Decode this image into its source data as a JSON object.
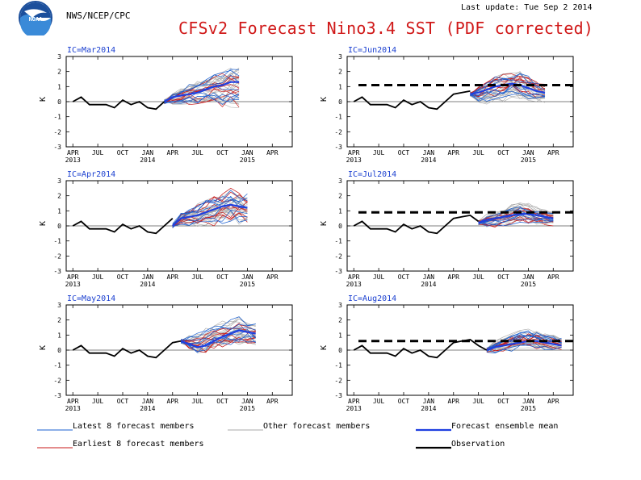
{
  "header": {
    "agency": "NWS/NCEP/CPC",
    "last_update": "Last update: Tue Sep  2 2014",
    "title": "CFSv2 Forecast Nino3.4 SST (PDF corrected)",
    "logo_text": "NOAA"
  },
  "colors": {
    "latest_members": "#1a5fd0",
    "other_members": "#a8a8a8",
    "earliest_members": "#c81818",
    "ensemble_mean": "#1f3fe0",
    "observation": "#000000",
    "panel_title": "#1a3fd0",
    "title": "#d01818"
  },
  "legend": [
    {
      "label": "Latest 8 forecast members",
      "color": "#1a5fd0",
      "style": "thin"
    },
    {
      "label": "Other forecast members",
      "color": "#a8a8a8",
      "style": "thin"
    },
    {
      "label": "Forecast ensemble mean",
      "color": "#1f3fe0",
      "style": "thick"
    },
    {
      "label": "Earliest 8 forecast members",
      "color": "#c81818",
      "style": "thin"
    },
    {
      "label": "Observation",
      "color": "#000000",
      "style": "thick"
    }
  ],
  "chart_data": [
    {
      "type": "line",
      "ic": "IC=Mar2014",
      "ic_month": 11,
      "ylabel": "K",
      "ylim": [
        -3,
        3
      ],
      "yticks": [
        -3,
        -2,
        -1,
        0,
        1,
        2,
        3
      ],
      "reference_line": null,
      "x_tick_labels": [
        [
          "APR",
          "2013"
        ],
        [
          "JUL",
          ""
        ],
        [
          "OCT",
          ""
        ],
        [
          "JAN",
          "2014"
        ],
        [
          "APR",
          ""
        ],
        [
          "JUL",
          ""
        ],
        [
          "OCT",
          ""
        ],
        [
          "JAN",
          "2015"
        ],
        [
          "APR",
          ""
        ]
      ],
      "observation": [
        0.0,
        0.3,
        -0.2,
        -0.2,
        -0.2,
        -0.4,
        0.1,
        -0.2,
        0.0,
        -0.4,
        -0.5,
        0.0
      ],
      "ensemble_mean": [
        0.0,
        0.3,
        0.4,
        0.5,
        0.6,
        0.8,
        1.0,
        1.1,
        1.3,
        1.3
      ],
      "spread_low": [
        0.0,
        -0.2,
        -0.2,
        -0.2,
        -0.3,
        -0.3,
        -0.3,
        -0.4,
        -0.5,
        -0.4
      ],
      "spread_high": [
        0.0,
        0.6,
        0.9,
        1.2,
        1.4,
        1.6,
        1.8,
        2.0,
        2.3,
        2.4
      ]
    },
    {
      "type": "line",
      "ic": "IC=Jun2014",
      "ic_month": 14,
      "ylabel": "K",
      "ylim": [
        -3,
        3
      ],
      "yticks": [
        -3,
        -2,
        -1,
        0,
        1,
        2,
        3
      ],
      "reference_line": 1.1,
      "x_tick_labels": [
        [
          "APR",
          "2013"
        ],
        [
          "JUL",
          ""
        ],
        [
          "OCT",
          ""
        ],
        [
          "JAN",
          "2014"
        ],
        [
          "APR",
          ""
        ],
        [
          "JUL",
          ""
        ],
        [
          "OCT",
          ""
        ],
        [
          "JAN",
          "2015"
        ],
        [
          "APR",
          ""
        ]
      ],
      "observation": [
        0.0,
        0.3,
        -0.2,
        -0.2,
        -0.2,
        -0.4,
        0.1,
        -0.2,
        0.0,
        -0.4,
        -0.5,
        0.0,
        0.5,
        0.6,
        0.7
      ],
      "ensemble_mean": [
        0.5,
        0.6,
        0.8,
        1.0,
        1.1,
        1.2,
        1.1,
        0.9,
        0.7,
        0.6
      ],
      "spread_low": [
        0.3,
        -0.2,
        -0.2,
        -0.1,
        0.0,
        0.1,
        0.1,
        0.0,
        -0.1,
        -0.1
      ],
      "spread_high": [
        0.7,
        1.0,
        1.4,
        1.7,
        1.9,
        2.0,
        2.0,
        1.7,
        1.4,
        1.2
      ]
    },
    {
      "type": "line",
      "ic": "IC=Apr2014",
      "ic_month": 12,
      "ylabel": "K",
      "ylim": [
        -3,
        3
      ],
      "yticks": [
        -3,
        -2,
        -1,
        0,
        1,
        2,
        3
      ],
      "reference_line": null,
      "x_tick_labels": [
        [
          "APR",
          "2013"
        ],
        [
          "JUL",
          ""
        ],
        [
          "OCT",
          ""
        ],
        [
          "JAN",
          "2014"
        ],
        [
          "APR",
          ""
        ],
        [
          "JUL",
          ""
        ],
        [
          "OCT",
          ""
        ],
        [
          "JAN",
          "2015"
        ],
        [
          "APR",
          ""
        ]
      ],
      "observation": [
        0.0,
        0.3,
        -0.2,
        -0.2,
        -0.2,
        -0.4,
        0.1,
        -0.2,
        0.0,
        -0.4,
        -0.5,
        0.0,
        0.5
      ],
      "ensemble_mean": [
        0.0,
        0.5,
        0.6,
        0.7,
        0.9,
        1.1,
        1.3,
        1.4,
        1.3,
        1.2
      ],
      "spread_low": [
        0.0,
        0.1,
        0.0,
        -0.1,
        0.0,
        0.0,
        0.1,
        0.2,
        0.1,
        0.0
      ],
      "spread_high": [
        0.0,
        0.9,
        1.3,
        1.6,
        1.9,
        2.1,
        2.4,
        2.6,
        2.5,
        2.3
      ]
    },
    {
      "type": "line",
      "ic": "IC=Jul2014",
      "ic_month": 15,
      "ylabel": "K",
      "ylim": [
        -3,
        3
      ],
      "yticks": [
        -3,
        -2,
        -1,
        0,
        1,
        2,
        3
      ],
      "reference_line": 0.9,
      "x_tick_labels": [
        [
          "APR",
          "2013"
        ],
        [
          "JUL",
          ""
        ],
        [
          "OCT",
          ""
        ],
        [
          "JAN",
          "2014"
        ],
        [
          "APR",
          ""
        ],
        [
          "JUL",
          ""
        ],
        [
          "OCT",
          ""
        ],
        [
          "JAN",
          "2015"
        ],
        [
          "APR",
          ""
        ]
      ],
      "observation": [
        0.0,
        0.3,
        -0.2,
        -0.2,
        -0.2,
        -0.4,
        0.1,
        -0.2,
        0.0,
        -0.4,
        -0.5,
        0.0,
        0.5,
        0.6,
        0.7,
        0.3
      ],
      "ensemble_mean": [
        0.2,
        0.4,
        0.5,
        0.6,
        0.7,
        0.8,
        0.8,
        0.7,
        0.6,
        0.5
      ],
      "spread_low": [
        0.0,
        -0.1,
        -0.1,
        0.0,
        0.1,
        0.2,
        0.1,
        0.1,
        0.0,
        0.0
      ],
      "spread_high": [
        0.4,
        0.8,
        1.0,
        1.3,
        1.5,
        1.6,
        1.5,
        1.3,
        1.2,
        1.1
      ]
    },
    {
      "type": "line",
      "ic": "IC=May2014",
      "ic_month": 13,
      "ylabel": "K",
      "ylim": [
        -3,
        3
      ],
      "yticks": [
        -3,
        -2,
        -1,
        0,
        1,
        2,
        3
      ],
      "reference_line": null,
      "x_tick_labels": [
        [
          "APR",
          "2013"
        ],
        [
          "JUL",
          ""
        ],
        [
          "OCT",
          ""
        ],
        [
          "JAN",
          "2014"
        ],
        [
          "APR",
          ""
        ],
        [
          "JUL",
          ""
        ],
        [
          "OCT",
          ""
        ],
        [
          "JAN",
          "2015"
        ],
        [
          "APR",
          ""
        ]
      ],
      "observation": [
        0.0,
        0.3,
        -0.2,
        -0.2,
        -0.2,
        -0.4,
        0.1,
        -0.2,
        0.0,
        -0.4,
        -0.5,
        0.0,
        0.5,
        0.6
      ],
      "ensemble_mean": [
        0.6,
        0.4,
        0.2,
        0.3,
        0.6,
        0.9,
        1.1,
        1.3,
        1.2,
        1.1
      ],
      "spread_low": [
        0.4,
        0.0,
        -0.3,
        -0.3,
        -0.1,
        0.1,
        0.2,
        0.3,
        0.3,
        0.2
      ],
      "spread_high": [
        0.8,
        1.0,
        1.2,
        1.5,
        1.8,
        2.0,
        2.2,
        2.3,
        2.1,
        1.9
      ]
    },
    {
      "type": "line",
      "ic": "IC=Aug2014",
      "ic_month": 16,
      "ylabel": "K",
      "ylim": [
        -3,
        3
      ],
      "yticks": [
        -3,
        -2,
        -1,
        0,
        1,
        2,
        3
      ],
      "reference_line": 0.6,
      "x_tick_labels": [
        [
          "APR",
          "2013"
        ],
        [
          "JUL",
          ""
        ],
        [
          "OCT",
          ""
        ],
        [
          "JAN",
          "2014"
        ],
        [
          "APR",
          ""
        ],
        [
          "JUL",
          ""
        ],
        [
          "OCT",
          ""
        ],
        [
          "JAN",
          "2015"
        ],
        [
          "APR",
          ""
        ]
      ],
      "observation": [
        0.0,
        0.3,
        -0.2,
        -0.2,
        -0.2,
        -0.4,
        0.1,
        -0.2,
        0.0,
        -0.4,
        -0.5,
        0.0,
        0.5,
        0.6,
        0.7,
        0.3,
        0.0
      ],
      "ensemble_mean": [
        0.0,
        0.2,
        0.3,
        0.4,
        0.5,
        0.6,
        0.6,
        0.5,
        0.4,
        0.3
      ],
      "spread_low": [
        0.0,
        -0.2,
        -0.2,
        -0.1,
        0.0,
        0.0,
        0.0,
        -0.1,
        -0.1,
        -0.1
      ],
      "spread_high": [
        0.0,
        0.6,
        0.9,
        1.1,
        1.3,
        1.4,
        1.3,
        1.1,
        1.0,
        0.9
      ]
    }
  ]
}
